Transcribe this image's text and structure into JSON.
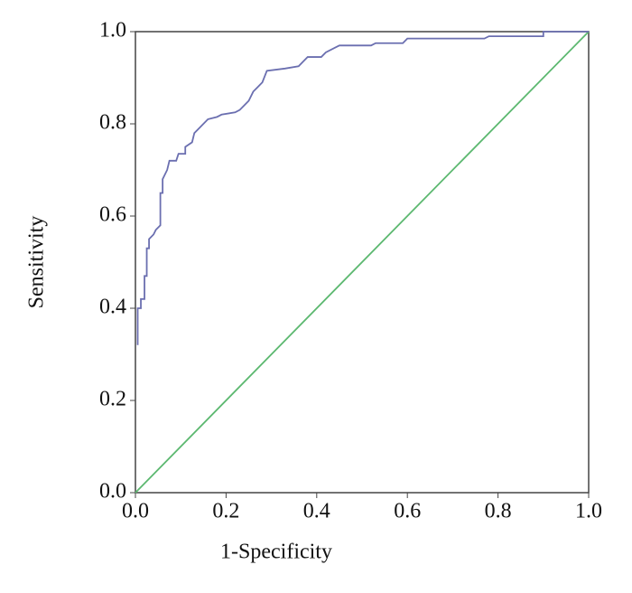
{
  "chart_data": {
    "type": "line",
    "xlabel": "1-Specificity",
    "ylabel": "Sensitivity",
    "xlim": [
      0,
      1
    ],
    "ylim": [
      0,
      1
    ],
    "xticks": [
      {
        "value": 0,
        "label": "0.0"
      },
      0.2,
      0.4,
      0.6,
      0.8,
      {
        "value": 1,
        "label": "1.0"
      }
    ],
    "yticks": [
      {
        "value": 0,
        "label": "0.0"
      },
      0.2,
      0.4,
      0.6,
      0.8,
      {
        "value": 1,
        "label": "1.0"
      }
    ],
    "series": [
      {
        "color": "#6b6fb0",
        "x": [
          0.005,
          0.005,
          0.012,
          0.012,
          0.02,
          0.02,
          0.025,
          0.025,
          0.03,
          0.03,
          0.04,
          0.045,
          0.055,
          0.055,
          0.06,
          0.06,
          0.07,
          0.075,
          0.09,
          0.095,
          0.11,
          0.11,
          0.125,
          0.13,
          0.14,
          0.15,
          0.16,
          0.18,
          0.19,
          0.22,
          0.23,
          0.24,
          0.25,
          0.26,
          0.27,
          0.28,
          0.29,
          0.33,
          0.36,
          0.37,
          0.38,
          0.41,
          0.42,
          0.44,
          0.45,
          0.52,
          0.53,
          0.59,
          0.6,
          0.77,
          0.78,
          0.9,
          0.9,
          1.0
        ],
        "values": [
          0.32,
          0.4,
          0.4,
          0.42,
          0.42,
          0.47,
          0.47,
          0.53,
          0.53,
          0.55,
          0.56,
          0.57,
          0.58,
          0.65,
          0.65,
          0.68,
          0.7,
          0.72,
          0.72,
          0.735,
          0.735,
          0.75,
          0.76,
          0.78,
          0.79,
          0.8,
          0.81,
          0.815,
          0.82,
          0.825,
          0.83,
          0.84,
          0.85,
          0.87,
          0.88,
          0.89,
          0.915,
          0.92,
          0.925,
          0.935,
          0.945,
          0.945,
          0.955,
          0.965,
          0.97,
          0.97,
          0.975,
          0.975,
          0.985,
          0.985,
          0.99,
          0.99,
          1.0,
          1.0
        ]
      },
      {
        "color": "#5cb870",
        "x": [
          0,
          1
        ],
        "values": [
          0,
          1
        ]
      }
    ]
  }
}
